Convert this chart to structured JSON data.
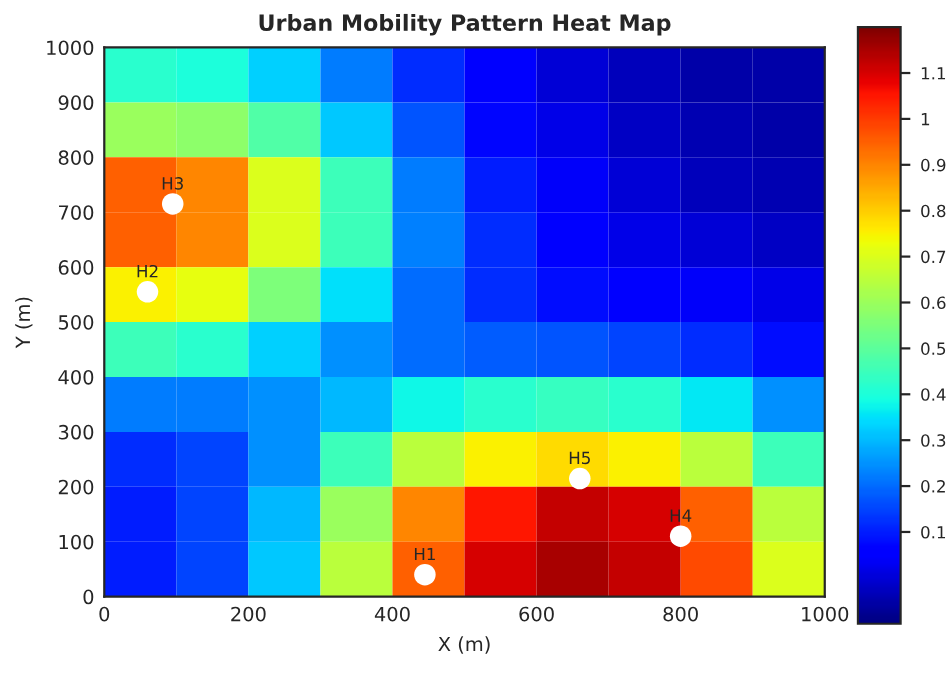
{
  "chart_data": {
    "type": "heatmap",
    "title": "Urban Mobility Pattern Heat Map",
    "xlabel": "X (m)",
    "ylabel": "Y (m)",
    "x": [
      50,
      150,
      250,
      350,
      450,
      550,
      650,
      750,
      850,
      950
    ],
    "y": [
      950,
      850,
      750,
      650,
      550,
      450,
      350,
      250,
      150,
      50
    ],
    "cells": [
      [
        0.42,
        0.4,
        0.33,
        0.22,
        0.12,
        0.05,
        0,
        -0.03,
        -0.05,
        -0.05
      ],
      [
        0.6,
        0.58,
        0.48,
        0.32,
        0.17,
        0.07,
        0.02,
        -0.02,
        -0.04,
        -0.05
      ],
      [
        0.95,
        0.9,
        0.7,
        0.45,
        0.22,
        0.1,
        0.04,
        0,
        -0.03,
        -0.04
      ],
      [
        0.95,
        0.9,
        0.7,
        0.45,
        0.23,
        0.12,
        0.06,
        0.02,
        0,
        -0.02
      ],
      [
        0.75,
        0.72,
        0.55,
        0.35,
        0.2,
        0.12,
        0.08,
        0.06,
        0.04,
        0.02
      ],
      [
        0.45,
        0.42,
        0.33,
        0.25,
        0.2,
        0.18,
        0.17,
        0.15,
        0.12,
        0.08
      ],
      [
        0.22,
        0.22,
        0.25,
        0.3,
        0.38,
        0.42,
        0.44,
        0.42,
        0.36,
        0.25
      ],
      [
        0.12,
        0.15,
        0.25,
        0.45,
        0.65,
        0.75,
        0.78,
        0.75,
        0.65,
        0.45
      ],
      [
        0.1,
        0.15,
        0.3,
        0.6,
        0.9,
        1.05,
        1.12,
        1.1,
        0.95,
        0.65
      ],
      [
        0.1,
        0.15,
        0.32,
        0.65,
        0.95,
        1.1,
        1.15,
        1.12,
        0.98,
        0.7
      ]
    ],
    "clim": [
      -0.1,
      1.2
    ],
    "cticks": [
      0.1,
      0.2,
      0.3,
      0.4,
      0.5,
      0.6,
      0.7,
      0.8,
      0.9,
      1,
      1.1
    ],
    "xlim": [
      0,
      1000
    ],
    "ylim": [
      0,
      1000
    ],
    "xticks": [
      0,
      200,
      400,
      600,
      800,
      1000
    ],
    "yticks": [
      0,
      100,
      200,
      300,
      400,
      500,
      600,
      700,
      800,
      900,
      1000
    ],
    "series": [
      {
        "type": "scatter",
        "color": "#ffffff",
        "marker": "circle",
        "x": [
          445,
          60,
          95,
          800,
          660
        ],
        "values": [
          40,
          555,
          715,
          110,
          215
        ],
        "value_labels": [
          "H1",
          "H2",
          "H3",
          "H4",
          "H5"
        ]
      }
    ],
    "grid": false,
    "legend": false
  }
}
